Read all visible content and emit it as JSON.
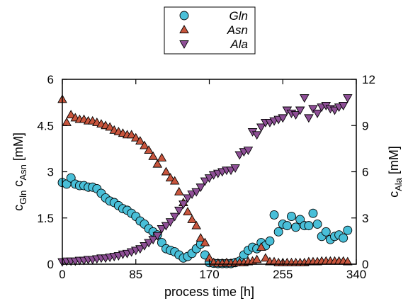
{
  "chart_data": {
    "type": "scatter",
    "xlabel": "process time [h]",
    "ylabel_left": {
      "main": "c",
      "sub1": "Gln",
      "mid": " c",
      "sub2": "Asn",
      "unit": " [mM]"
    },
    "ylabel_right": {
      "main": "c",
      "sub": "Ala",
      "unit": " [mM]"
    },
    "xlim": [
      0,
      340
    ],
    "ylim_left": [
      0,
      6
    ],
    "ylim_right": [
      0,
      12
    ],
    "x_ticks": [
      0,
      85,
      170,
      255,
      340
    ],
    "x_tick_labels": [
      "0",
      "85",
      "170",
      "255",
      "340"
    ],
    "y_left_ticks": [
      0,
      1.5,
      3,
      4.5,
      6
    ],
    "y_left_tick_labels": [
      "0",
      "1.5",
      "3",
      "4.5",
      "6"
    ],
    "y_right_ticks": [
      0,
      3,
      6,
      9,
      12
    ],
    "y_right_tick_labels": [
      "0",
      "3",
      "6",
      "9",
      "12"
    ],
    "grid": false,
    "legend_position": "top-center",
    "series": [
      {
        "name": "Gln",
        "axis": "left",
        "marker": "circle",
        "color": "#49bfd8",
        "x": [
          0,
          5,
          10,
          15,
          20,
          25,
          30,
          35,
          40,
          45,
          50,
          55,
          60,
          65,
          70,
          75,
          80,
          85,
          90,
          95,
          100,
          105,
          110,
          115,
          120,
          125,
          130,
          135,
          140,
          145,
          150,
          155,
          160,
          165,
          170,
          175,
          180,
          185,
          190,
          195,
          200,
          205,
          210,
          215,
          220,
          225,
          230,
          235,
          240,
          245,
          250,
          255,
          260,
          265,
          270,
          275,
          280,
          285,
          290,
          295,
          300,
          305,
          310,
          315,
          320,
          325,
          330
        ],
        "y": [
          2.65,
          2.6,
          2.8,
          2.6,
          2.55,
          2.55,
          2.5,
          2.5,
          2.45,
          2.3,
          2.15,
          2.05,
          2.0,
          1.9,
          1.8,
          1.75,
          1.65,
          1.55,
          1.4,
          1.3,
          1.15,
          1.05,
          0.95,
          0.7,
          0.5,
          0.45,
          0.4,
          0.3,
          0.2,
          0.25,
          0.35,
          0.5,
          0.65,
          0.3,
          0.05,
          0.03,
          0.02,
          0.02,
          0.02,
          0.02,
          0.05,
          0.1,
          0.3,
          0.45,
          0.55,
          0.5,
          0.7,
          0.6,
          0.75,
          1.6,
          1.05,
          1.3,
          1.25,
          1.55,
          1.2,
          1.45,
          1.25,
          1.25,
          1.65,
          1.3,
          0.9,
          1.05,
          0.8,
          0.9,
          0.95,
          0.85,
          1.1
        ]
      },
      {
        "name": "Asn",
        "axis": "left",
        "marker": "triangle-up",
        "color": "#c8553d",
        "x": [
          0,
          5,
          10,
          15,
          20,
          25,
          30,
          35,
          40,
          45,
          50,
          55,
          60,
          65,
          70,
          75,
          80,
          85,
          90,
          95,
          100,
          105,
          110,
          115,
          120,
          125,
          130,
          135,
          140,
          145,
          150,
          155,
          160,
          165,
          170,
          175,
          180,
          185,
          190,
          195,
          200,
          205,
          210,
          215,
          220,
          225,
          230,
          235,
          240,
          245,
          250,
          255,
          260,
          265,
          270,
          275,
          280,
          285,
          290,
          295,
          300,
          305,
          310,
          315,
          320,
          325,
          330
        ],
        "y": [
          5.35,
          4.6,
          4.85,
          4.75,
          4.7,
          4.7,
          4.65,
          4.65,
          4.6,
          4.55,
          4.5,
          4.45,
          4.35,
          4.3,
          4.25,
          4.2,
          4.2,
          4.1,
          4.0,
          3.85,
          3.7,
          3.5,
          3.25,
          3.45,
          3.0,
          2.8,
          2.7,
          2.35,
          2.0,
          1.7,
          1.45,
          1.25,
          0.85,
          0.7,
          0.2,
          0.05,
          0.03,
          0.03,
          0.05,
          0.03,
          0.05,
          0.05,
          0.05,
          0.08,
          0.1,
          0.15,
          0.55,
          0.2,
          0.08,
          0.08,
          0.05,
          0.05,
          0.05,
          0.05,
          0.05,
          0.05,
          0.05,
          0.08,
          0.08,
          0.08,
          0.1,
          0.1,
          0.1,
          0.1,
          0.1,
          0.1,
          0.08
        ]
      },
      {
        "name": "Ala",
        "axis": "right",
        "marker": "triangle-down",
        "color": "#8e4f96",
        "x": [
          0,
          5,
          10,
          15,
          20,
          25,
          30,
          35,
          40,
          45,
          50,
          55,
          60,
          65,
          70,
          75,
          80,
          85,
          90,
          95,
          100,
          105,
          110,
          115,
          120,
          125,
          130,
          135,
          140,
          145,
          150,
          155,
          160,
          165,
          170,
          175,
          180,
          185,
          190,
          195,
          200,
          205,
          210,
          215,
          220,
          225,
          230,
          235,
          240,
          245,
          250,
          255,
          260,
          265,
          270,
          275,
          280,
          285,
          290,
          295,
          300,
          305,
          310,
          315,
          320,
          325,
          330
        ],
        "y": [
          0.15,
          0.2,
          0.2,
          0.2,
          0.25,
          0.25,
          0.3,
          0.3,
          0.35,
          0.4,
          0.4,
          0.45,
          0.5,
          0.55,
          0.65,
          0.7,
          0.8,
          0.9,
          1.0,
          1.2,
          1.4,
          1.6,
          1.85,
          2.3,
          2.5,
          2.75,
          3.1,
          3.5,
          3.9,
          4.3,
          4.55,
          4.7,
          5.0,
          5.4,
          5.6,
          5.8,
          5.9,
          6.0,
          6.1,
          6.1,
          6.25,
          7.1,
          7.3,
          7.4,
          8.6,
          8.4,
          8.9,
          9.2,
          9.2,
          9.3,
          9.4,
          9.5,
          10.0,
          9.8,
          9.7,
          10.0,
          10.8,
          9.5,
          10.1,
          9.8,
          10.2,
          10.3,
          10.1,
          10.0,
          10.2,
          10.3,
          10.8
        ]
      }
    ]
  }
}
